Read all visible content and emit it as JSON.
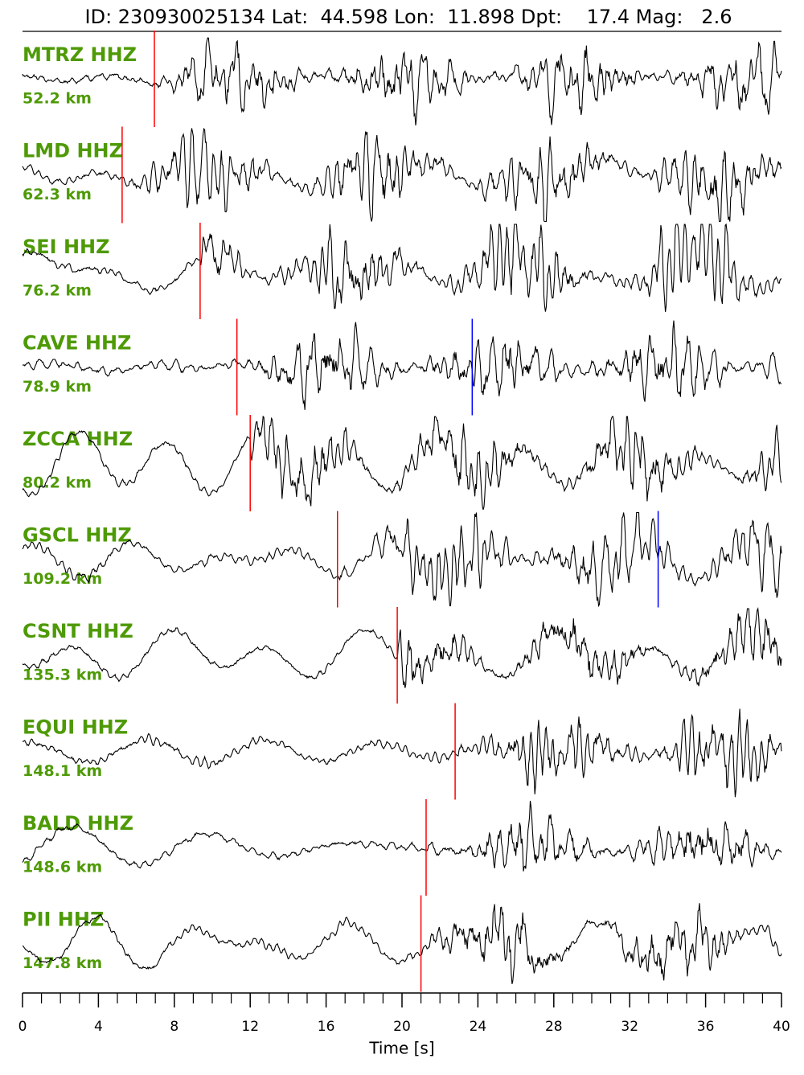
{
  "chart_data": {
    "type": "seismogram",
    "title": "ID: 230930025134 Lat:  44.598 Lon:  11.898 Dpt:    17.4 Mag:   2.6",
    "xlabel": "Time [s]",
    "xlim": [
      0,
      40
    ],
    "xticks": [
      0,
      4,
      8,
      12,
      16,
      20,
      24,
      28,
      32,
      36,
      40
    ],
    "label_color": "#4e9a06",
    "series": [
      {
        "name": "MTRZ HHZ",
        "distance": "52.2 km",
        "picks": [
          {
            "time": 6.95,
            "color": "red"
          }
        ]
      },
      {
        "name": "LMD HHZ",
        "distance": "62.3 km",
        "picks": [
          {
            "time": 5.25,
            "color": "red"
          }
        ]
      },
      {
        "name": "SEI HHZ",
        "distance": "76.2 km",
        "picks": [
          {
            "time": 9.36,
            "color": "red"
          }
        ]
      },
      {
        "name": "CAVE HHZ",
        "distance": "78.9 km",
        "picks": [
          {
            "time": 11.3,
            "color": "red"
          },
          {
            "time": 23.7,
            "color": "blue"
          }
        ]
      },
      {
        "name": "ZCCA HHZ",
        "distance": "80.2 km",
        "picks": [
          {
            "time": 12.0,
            "color": "red"
          }
        ]
      },
      {
        "name": "GSCL HHZ",
        "distance": "109.2 km",
        "picks": [
          {
            "time": 16.6,
            "color": "red"
          },
          {
            "time": 33.5,
            "color": "blue"
          }
        ]
      },
      {
        "name": "CSNT HHZ",
        "distance": "135.3 km",
        "picks": [
          {
            "time": 19.75,
            "color": "red"
          }
        ]
      },
      {
        "name": "EQUI HHZ",
        "distance": "148.1 km",
        "picks": [
          {
            "time": 22.8,
            "color": "red"
          }
        ]
      },
      {
        "name": "BALD HHZ",
        "distance": "148.6 km",
        "picks": [
          {
            "time": 21.27,
            "color": "red"
          }
        ]
      },
      {
        "name": "PII HHZ",
        "distance": "147.8 km",
        "picks": [
          {
            "time": 21.0,
            "color": "red"
          }
        ]
      }
    ]
  }
}
